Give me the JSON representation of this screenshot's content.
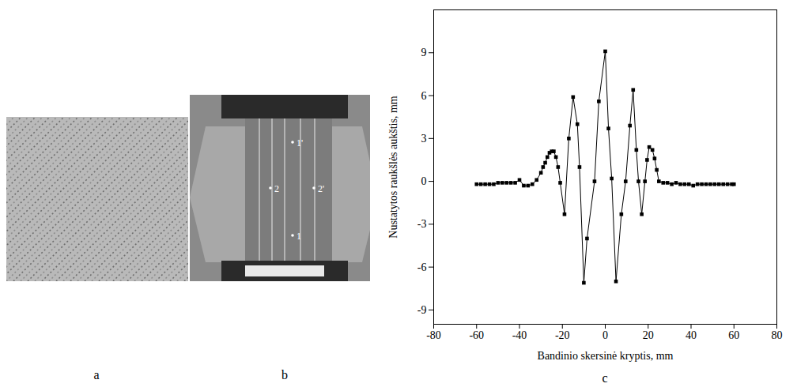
{
  "photo_panels": [
    {
      "label": "a"
    },
    {
      "label": "b",
      "point_labels": [
        "1'",
        "2",
        "2'",
        "1"
      ]
    }
  ],
  "chart_data": {
    "type": "line",
    "panel_label": "c",
    "x_label": "Bandinio skersinė kryptis, mm",
    "y_label": "Nustatytos raukšlės aukštis, mm",
    "x": [
      -60,
      -58,
      -56,
      -54,
      -52,
      -50,
      -48,
      -46,
      -44,
      -42,
      -40,
      -38,
      -36,
      -34,
      -32,
      -30,
      -29,
      -28,
      -27,
      -26,
      -25,
      -24,
      -23,
      -22,
      -21,
      -19,
      -17,
      -15,
      -13,
      -12,
      -10,
      -8.5,
      -5,
      -3,
      0,
      1.5,
      3,
      5,
      7.5,
      9.5,
      11.5,
      13,
      14.5,
      15.5,
      17,
      18.5,
      19.5,
      20.5,
      22,
      23,
      24,
      25,
      27,
      29,
      31,
      33,
      35,
      37,
      39,
      41,
      43,
      45,
      47,
      49,
      51,
      53,
      55,
      57,
      59,
      60
    ],
    "values": [
      -0.2,
      -0.2,
      -0.2,
      -0.2,
      -0.2,
      -0.1,
      -0.1,
      -0.1,
      -0.1,
      -0.1,
      0.1,
      -0.3,
      -0.3,
      -0.2,
      0.1,
      0.6,
      1.0,
      1.3,
      1.7,
      2.0,
      2.1,
      2.1,
      1.7,
      1.0,
      -0.1,
      -2.3,
      3.0,
      5.9,
      4.0,
      1.0,
      -7.1,
      -4.0,
      0.0,
      5.6,
      9.1,
      3.7,
      0.2,
      -7.0,
      -2.3,
      0.0,
      3.9,
      6.4,
      2.2,
      0.0,
      -2.3,
      0.0,
      1.5,
      2.4,
      2.2,
      1.6,
      0.8,
      0.0,
      -0.1,
      -0.1,
      -0.2,
      -0.1,
      -0.2,
      -0.2,
      -0.2,
      -0.3,
      -0.2,
      -0.2,
      -0.2,
      -0.2,
      -0.2,
      -0.2,
      -0.2,
      -0.2,
      -0.2,
      -0.2
    ],
    "color": "#000000",
    "marker": "square",
    "line_style": "solid",
    "xlim": [
      -80,
      80
    ],
    "xticks": [
      -80,
      -60,
      -40,
      -20,
      0,
      20,
      40,
      60,
      80
    ],
    "ylim": [
      -10,
      12
    ],
    "yticks": [
      -9,
      -6,
      -3,
      0,
      3,
      6,
      9
    ],
    "grid": false
  }
}
